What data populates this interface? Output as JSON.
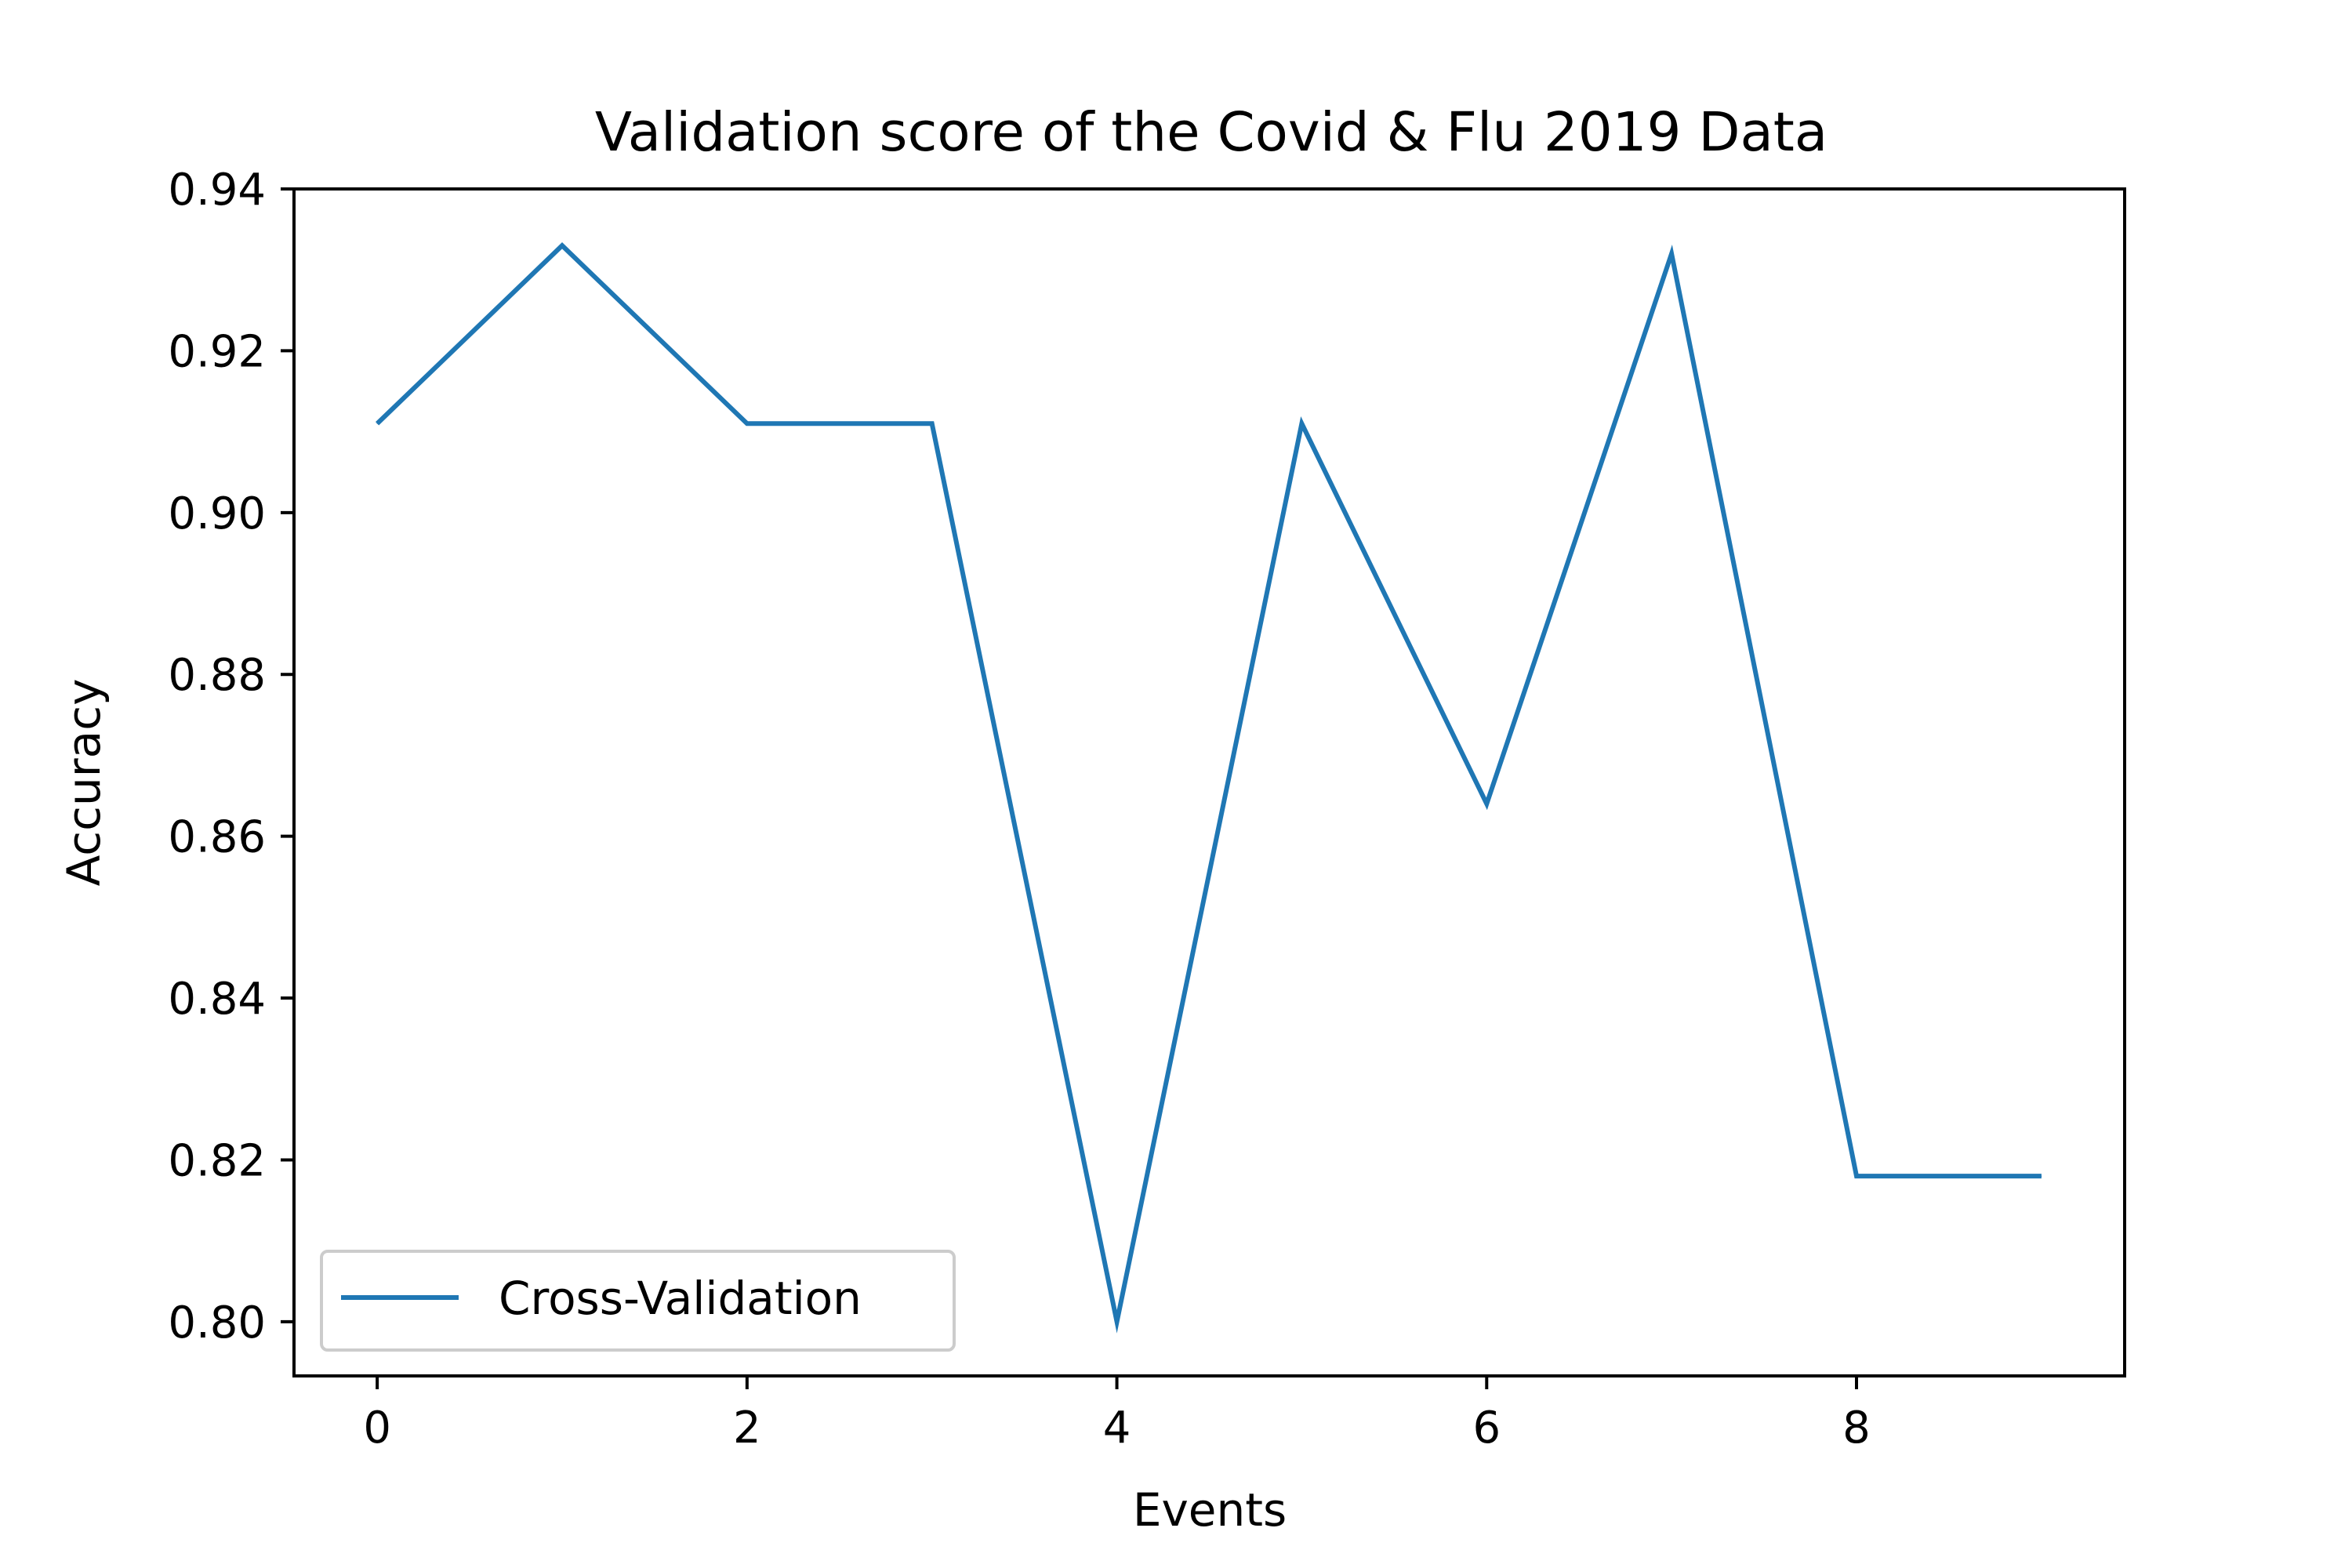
{
  "chart_data": {
    "type": "line",
    "title": "Validation score of the Covid & Flu 2019 Data",
    "xlabel": "Events",
    "ylabel": "Accuracy",
    "xlim": [
      -0.45,
      9.45
    ],
    "ylim": [
      0.7933,
      0.94
    ],
    "x_ticks": [
      0,
      2,
      4,
      6,
      8
    ],
    "x_tick_labels": [
      "0",
      "2",
      "4",
      "6",
      "8"
    ],
    "y_ticks": [
      0.8,
      0.82,
      0.84,
      0.86,
      0.88,
      0.9,
      0.92,
      0.94
    ],
    "y_tick_labels": [
      "0.80",
      "0.82",
      "0.84",
      "0.86",
      "0.88",
      "0.90",
      "0.92",
      "0.94"
    ],
    "grid": false,
    "legend_position": "lower-left",
    "series": [
      {
        "name": "Cross-Validation",
        "color": "#1f77b4",
        "x": [
          0,
          1,
          2,
          3,
          4,
          5,
          6,
          7,
          8,
          9
        ],
        "values": [
          0.911,
          0.933,
          0.911,
          0.911,
          0.8,
          0.911,
          0.864,
          0.932,
          0.818,
          0.818
        ]
      }
    ]
  }
}
